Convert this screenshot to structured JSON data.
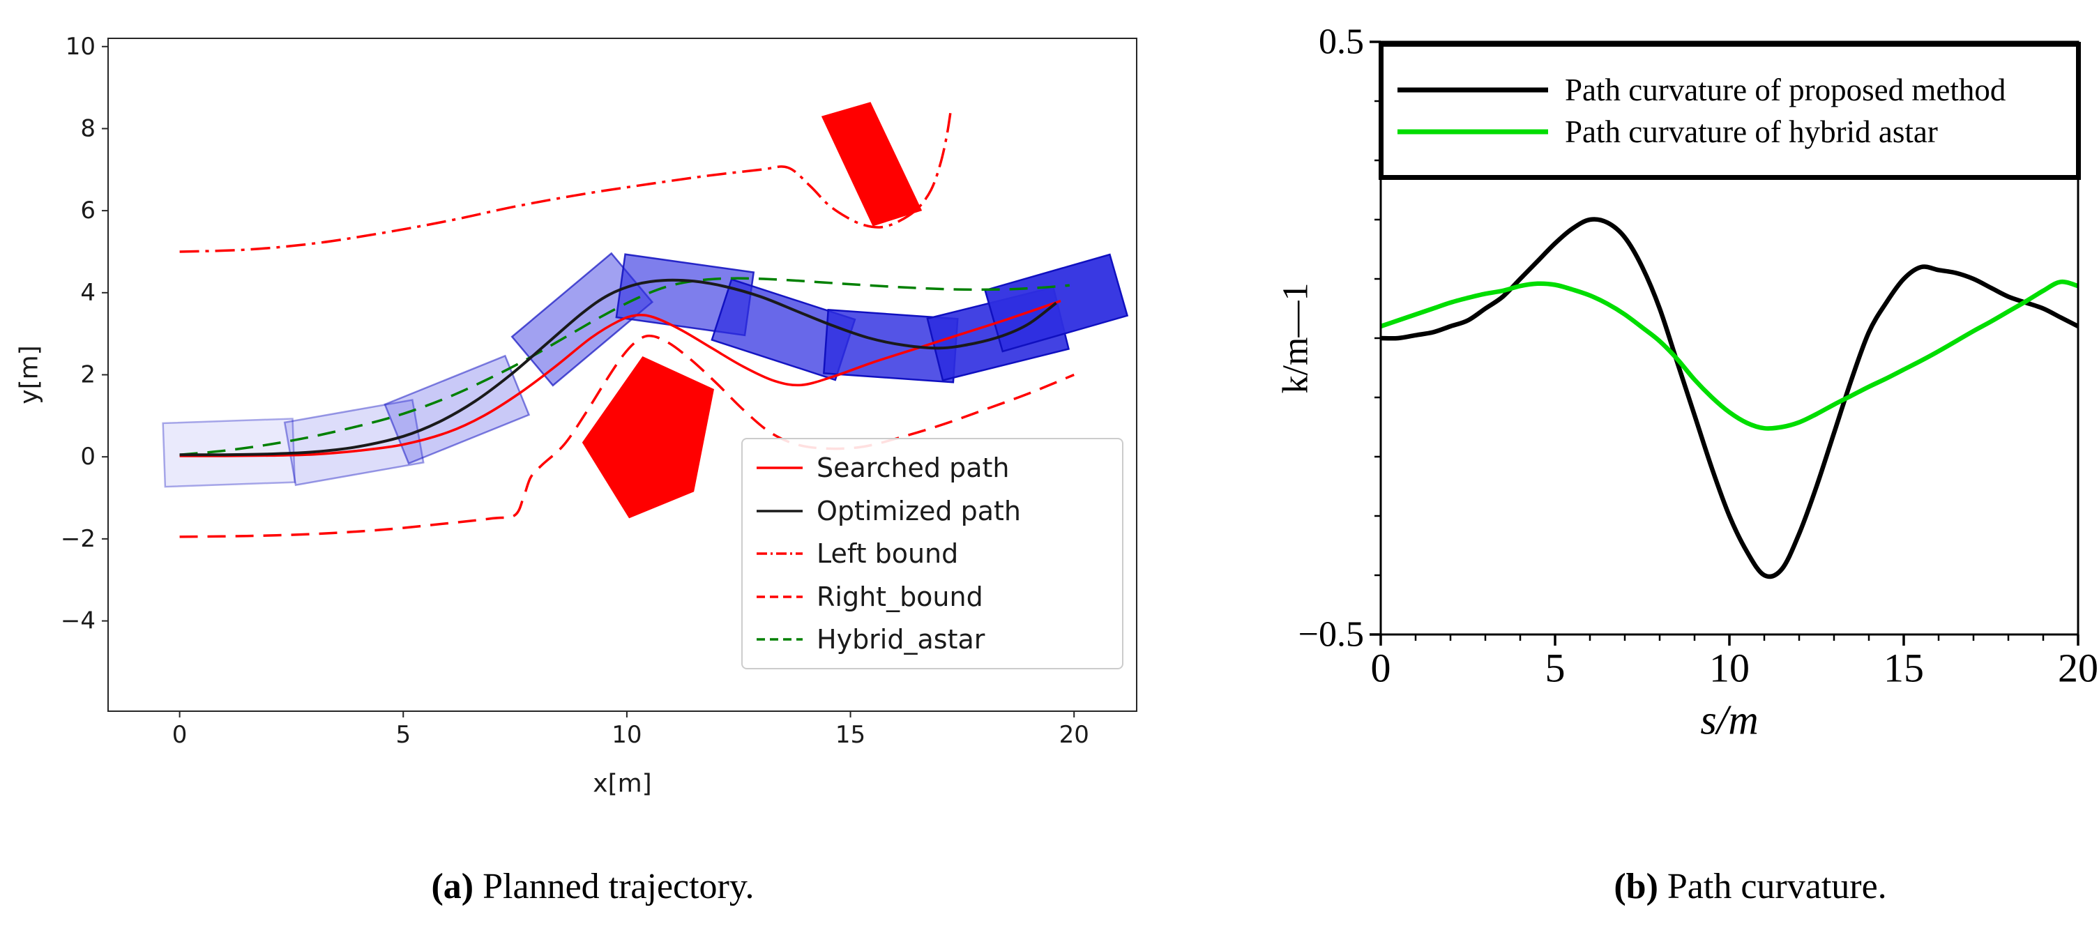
{
  "captions": {
    "a": {
      "bold": "(a)",
      "rest": " Planned trajectory."
    },
    "b": {
      "bold": "(b)",
      "rest": " Path curvature."
    }
  },
  "chart_data": [
    {
      "id": "trajectory",
      "type": "line",
      "title": "",
      "xlabel": "x[m]",
      "ylabel": "y[m]",
      "xlim": [
        -1.6,
        21.4
      ],
      "ylim": [
        -6.2,
        10.2
      ],
      "xticks": [
        0,
        5,
        10,
        15,
        20
      ],
      "yticks": [
        -4,
        -2,
        0,
        2,
        4,
        6,
        8,
        10
      ],
      "grid": false,
      "legend_position": "lower right",
      "series": [
        {
          "name": "Left bound",
          "color": "#ff0000",
          "style": "dashdot",
          "width": 3.5,
          "x": [
            0,
            1.5,
            3,
            4.5,
            6,
            7.5,
            9,
            10.5,
            11.8,
            13,
            13.6,
            14.1,
            14.5,
            14.9,
            15.3,
            15.7,
            16.1,
            16.5,
            16.8,
            17.0,
            17.15,
            17.25
          ],
          "y": [
            5.0,
            5.05,
            5.2,
            5.45,
            5.75,
            6.1,
            6.4,
            6.65,
            6.85,
            7.0,
            7.05,
            6.6,
            6.15,
            5.85,
            5.65,
            5.6,
            5.75,
            6.05,
            6.5,
            7.1,
            7.8,
            8.5
          ]
        },
        {
          "name": "Right_bound",
          "color": "#ff0000",
          "style": "dashed",
          "width": 3.5,
          "x": [
            0,
            1.5,
            3,
            4.5,
            6,
            7,
            7.5,
            7.7,
            7.85,
            8.1,
            8.6,
            9.1,
            9.5,
            9.9,
            10.2,
            10.5,
            10.9,
            11.4,
            12,
            12.6,
            13.2,
            13.8,
            14.5,
            15.3,
            16.2,
            17.1,
            18,
            19,
            20
          ],
          "y": [
            -1.95,
            -1.93,
            -1.88,
            -1.78,
            -1.62,
            -1.5,
            -1.42,
            -0.95,
            -0.5,
            -0.2,
            0.3,
            1.1,
            1.8,
            2.45,
            2.8,
            2.95,
            2.8,
            2.4,
            1.8,
            1.15,
            0.6,
            0.3,
            0.2,
            0.25,
            0.5,
            0.8,
            1.15,
            1.55,
            2.0
          ]
        },
        {
          "name": "Hybrid_astar",
          "color": "#008000",
          "style": "dashed",
          "width": 3.5,
          "x": [
            0,
            1,
            2,
            3,
            4,
            5,
            6,
            7,
            7.8,
            8.6,
            9.4,
            10.2,
            10.9,
            11.6,
            12.4,
            13.4,
            14.4,
            15.4,
            16.4,
            17.4,
            18.4,
            19.2,
            19.9
          ],
          "y": [
            0.05,
            0.15,
            0.3,
            0.5,
            0.75,
            1.05,
            1.45,
            1.95,
            2.4,
            2.9,
            3.4,
            3.85,
            4.15,
            4.3,
            4.35,
            4.32,
            4.25,
            4.18,
            4.12,
            4.08,
            4.08,
            4.12,
            4.18
          ]
        },
        {
          "name": "Searched path",
          "color": "#ff0000",
          "style": "solid",
          "width": 3.5,
          "x": [
            0,
            1,
            2,
            3,
            4,
            5,
            6,
            6.8,
            7.6,
            8.4,
            9.2,
            9.8,
            10.2,
            10.6,
            11.2,
            11.9,
            12.6,
            13.3,
            13.9,
            14.6,
            15.5,
            16.5,
            17.5,
            18.5,
            19.7
          ],
          "y": [
            0.02,
            0.02,
            0.03,
            0.06,
            0.15,
            0.3,
            0.6,
            1.0,
            1.55,
            2.2,
            2.9,
            3.3,
            3.45,
            3.4,
            3.1,
            2.65,
            2.2,
            1.85,
            1.75,
            1.95,
            2.3,
            2.65,
            3.0,
            3.35,
            3.8
          ]
        },
        {
          "name": "Optimized path",
          "color": "#1a1a1a",
          "style": "solid",
          "width": 4,
          "x": [
            0,
            1,
            2,
            3,
            4,
            5,
            5.8,
            6.6,
            7.4,
            8.2,
            9,
            9.6,
            10.2,
            10.8,
            11.5,
            12.2,
            13,
            13.8,
            14.6,
            15.4,
            16.2,
            17,
            17.7,
            18.4,
            19,
            19.6
          ],
          "y": [
            0.05,
            0.05,
            0.07,
            0.12,
            0.25,
            0.5,
            0.85,
            1.35,
            2.0,
            2.75,
            3.5,
            3.95,
            4.2,
            4.3,
            4.28,
            4.15,
            3.9,
            3.55,
            3.2,
            2.9,
            2.72,
            2.65,
            2.75,
            2.95,
            3.25,
            3.75
          ]
        }
      ],
      "legend_items": [
        {
          "label": "Searched path",
          "color": "#ff0000",
          "style": "solid"
        },
        {
          "label": "Optimized path",
          "color": "#1a1a1a",
          "style": "solid"
        },
        {
          "label": "Left bound",
          "color": "#ff0000",
          "style": "dashdot"
        },
        {
          "label": "Right_bound",
          "color": "#ff0000",
          "style": "dashed"
        },
        {
          "label": "Hybrid_astar",
          "color": "#008000",
          "style": "dashed"
        }
      ],
      "vehicle_footprints": {
        "length": 2.9,
        "width": 1.55,
        "fill": "#2e2ee0",
        "edge": "#1010c0",
        "poses": [
          {
            "cx": 1.1,
            "cy": 0.1,
            "angle": 2,
            "alpha": 0.1
          },
          {
            "cx": 3.9,
            "cy": 0.35,
            "angle": 10,
            "alpha": 0.16
          },
          {
            "cx": 6.2,
            "cy": 1.15,
            "angle": 22,
            "alpha": 0.26
          },
          {
            "cx": 9.0,
            "cy": 3.35,
            "angle": 40,
            "alpha": 0.45
          },
          {
            "cx": 11.3,
            "cy": 3.95,
            "angle": -8,
            "alpha": 0.62
          },
          {
            "cx": 13.5,
            "cy": 3.1,
            "angle": -18,
            "alpha": 0.72
          },
          {
            "cx": 15.9,
            "cy": 2.7,
            "angle": -4,
            "alpha": 0.82
          },
          {
            "cx": 18.3,
            "cy": 3.0,
            "angle": 14,
            "alpha": 0.9
          },
          {
            "cx": 19.6,
            "cy": 3.75,
            "angle": 16,
            "alpha": 0.95
          }
        ]
      },
      "obstacles": [
        {
          "name": "rect-obstacle",
          "color": "#ff0000",
          "points": [
            [
              14.35,
              8.3
            ],
            [
              15.45,
              8.65
            ],
            [
              16.6,
              6.0
            ],
            [
              15.5,
              5.62
            ]
          ]
        },
        {
          "name": "pentagon-obstacle",
          "color": "#ff0000",
          "points": [
            [
              9.0,
              0.35
            ],
            [
              10.35,
              2.45
            ],
            [
              11.95,
              1.65
            ],
            [
              11.5,
              -0.85
            ],
            [
              10.05,
              -1.5
            ]
          ]
        }
      ]
    },
    {
      "id": "curvature",
      "type": "line",
      "title": "",
      "xlabel": "s/m",
      "ylabel": "k/m—1",
      "xlim": [
        0,
        20
      ],
      "ylim": [
        -0.5,
        0.5
      ],
      "xticks": [
        0,
        5,
        10,
        15,
        20
      ],
      "xticks_minor": [
        1,
        2,
        3,
        4,
        6,
        7,
        8,
        9,
        11,
        12,
        13,
        14,
        16,
        17,
        18,
        19
      ],
      "yticks": [
        {
          "v": 0.5,
          "label": "0.5"
        },
        {
          "v": -0.5,
          "label": "-0.5"
        }
      ],
      "yticks_minor": [
        0.4,
        0.3,
        0.2,
        0.1,
        0,
        -0.1,
        -0.2,
        -0.3,
        -0.4
      ],
      "grid": false,
      "legend_position": "upper center",
      "series": [
        {
          "name": "Path curvature of proposed method",
          "color": "#000000",
          "style": "solid",
          "width": 6.5,
          "x": [
            0,
            0.5,
            1,
            1.5,
            2,
            2.5,
            3,
            3.5,
            4,
            4.5,
            5,
            5.5,
            6,
            6.5,
            7,
            7.5,
            8,
            8.5,
            9,
            9.5,
            10,
            10.5,
            11,
            11.5,
            12,
            12.5,
            13,
            13.5,
            14,
            14.5,
            15,
            15.5,
            16,
            16.5,
            17,
            17.5,
            18,
            18.5,
            19,
            19.5,
            20
          ],
          "y": [
            0,
            0,
            0.005,
            0.01,
            0.02,
            0.03,
            0.05,
            0.07,
            0.1,
            0.13,
            0.16,
            0.185,
            0.2,
            0.195,
            0.17,
            0.12,
            0.05,
            -0.04,
            -0.13,
            -0.22,
            -0.3,
            -0.36,
            -0.4,
            -0.39,
            -0.33,
            -0.25,
            -0.16,
            -0.07,
            0.01,
            0.06,
            0.1,
            0.12,
            0.115,
            0.11,
            0.1,
            0.085,
            0.07,
            0.06,
            0.05,
            0.035,
            0.02
          ]
        },
        {
          "name": "Path curvature of hybrid astar",
          "color": "#00dd00",
          "style": "solid",
          "width": 6.5,
          "x": [
            0,
            0.5,
            1,
            1.5,
            2,
            2.5,
            3,
            3.5,
            4,
            4.5,
            5,
            5.5,
            6,
            6.5,
            7,
            7.5,
            8,
            8.5,
            9,
            9.5,
            10,
            10.5,
            11,
            11.5,
            12,
            12.5,
            13,
            13.5,
            14,
            14.5,
            15,
            15.5,
            16,
            16.5,
            17,
            17.5,
            18,
            18.5,
            19,
            19.5,
            20
          ],
          "y": [
            0.02,
            0.03,
            0.04,
            0.05,
            0.06,
            0.068,
            0.075,
            0.08,
            0.088,
            0.092,
            0.09,
            0.082,
            0.072,
            0.058,
            0.04,
            0.018,
            -0.005,
            -0.035,
            -0.07,
            -0.1,
            -0.125,
            -0.143,
            -0.152,
            -0.15,
            -0.142,
            -0.128,
            -0.112,
            -0.097,
            -0.082,
            -0.068,
            -0.053,
            -0.038,
            -0.022,
            -0.005,
            0.012,
            0.028,
            0.045,
            0.062,
            0.08,
            0.095,
            0.088
          ]
        }
      ],
      "legend_items": [
        {
          "label": "Path curvature of proposed method",
          "color": "#000000",
          "style": "solid"
        },
        {
          "label": "Path curvature of hybrid astar",
          "color": "#00dd00",
          "style": "solid"
        }
      ]
    }
  ]
}
